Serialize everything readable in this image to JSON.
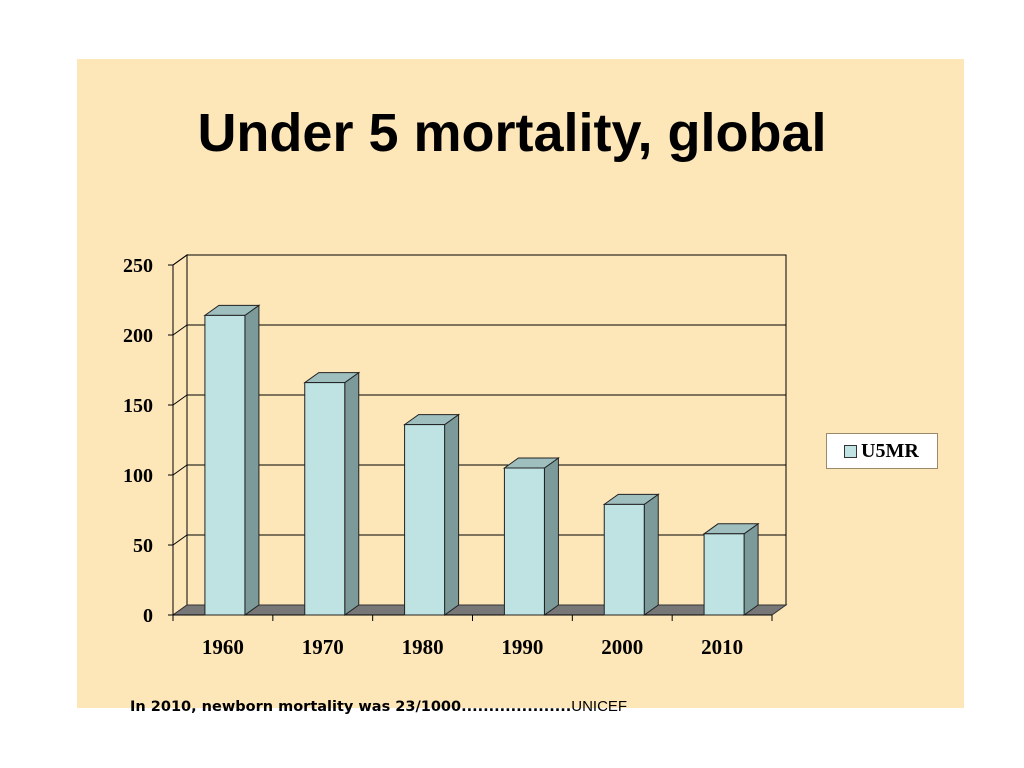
{
  "slide": {
    "title": "Under 5 mortality, global",
    "footnote": "In 2010, newborn mortality was 23/1000....................",
    "footnote_source": "UNICEF"
  },
  "colors": {
    "background": "#fde6b8",
    "bar_front": "#bfe3e3",
    "bar_side": "#7c9a9a",
    "bar_top": "#9fbfbf",
    "floor": "#777777"
  },
  "chart_data": {
    "type": "bar",
    "style": "3d-column",
    "categories": [
      "1960",
      "1970",
      "1980",
      "1990",
      "2000",
      "2010"
    ],
    "series": [
      {
        "name": "U5MR",
        "values": [
          214,
          166,
          136,
          105,
          79,
          58
        ]
      }
    ],
    "y_ticks": [
      "0",
      "50",
      "100",
      "150",
      "200",
      "250"
    ],
    "ylim": [
      0,
      250
    ],
    "grid": true,
    "legend": "right"
  }
}
